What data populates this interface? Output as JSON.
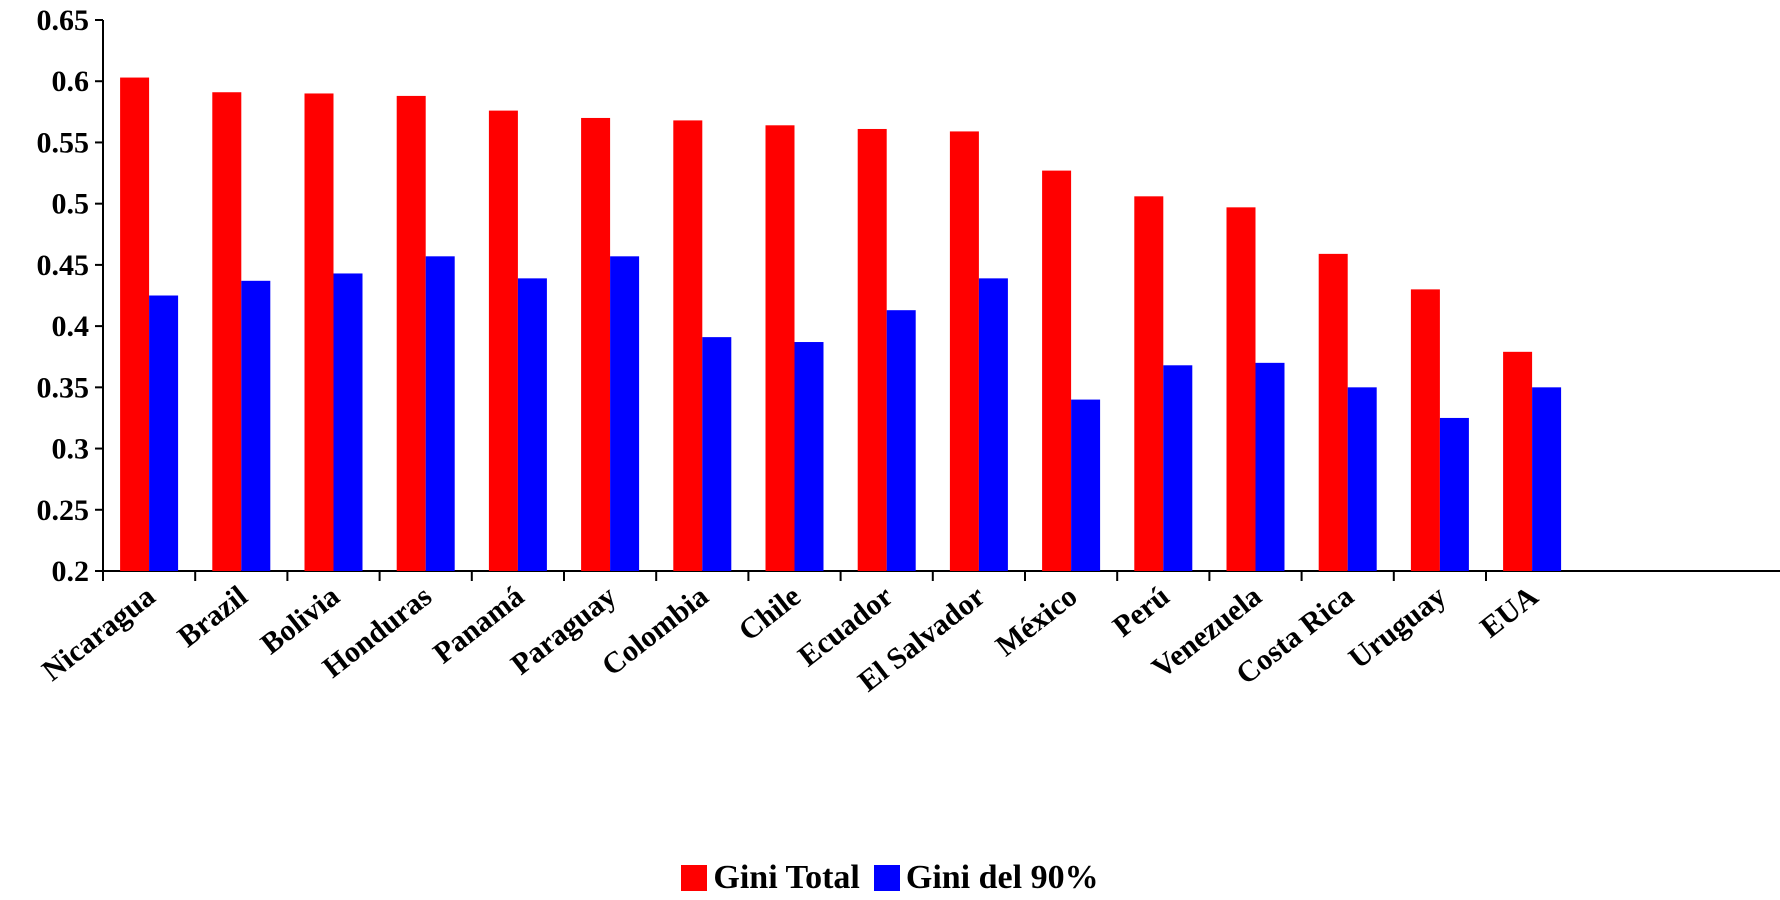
{
  "chart_data": {
    "type": "bar",
    "categories": [
      "Nicaragua",
      "Brazil",
      "Bolivia",
      "Honduras",
      "Panamá",
      "Paraguay",
      "Colombia",
      "Chile",
      "Ecuador",
      "El Salvador",
      "México",
      "Perú",
      "Venezuela",
      "Costa Rica",
      "Uruguay",
      "EUA"
    ],
    "series": [
      {
        "name": "Gini Total",
        "color": "#ff0000",
        "values": [
          0.603,
          0.591,
          0.59,
          0.588,
          0.576,
          0.57,
          0.568,
          0.564,
          0.561,
          0.559,
          0.527,
          0.506,
          0.497,
          0.459,
          0.43,
          0.379
        ]
      },
      {
        "name": "Gini del 90%",
        "color": "#0000ff",
        "values": [
          0.425,
          0.437,
          0.443,
          0.457,
          0.439,
          0.457,
          0.391,
          0.387,
          0.413,
          0.439,
          0.34,
          0.368,
          0.37,
          0.35,
          0.325,
          0.35
        ]
      }
    ],
    "ylim": [
      0.2,
      0.65
    ],
    "yticks": [
      "0.2",
      "0.25",
      "0.3",
      "0.35",
      "0.4",
      "0.45",
      "0.5",
      "0.55",
      "0.6",
      "0.65"
    ],
    "grid": false,
    "legend_position": "bottom"
  }
}
